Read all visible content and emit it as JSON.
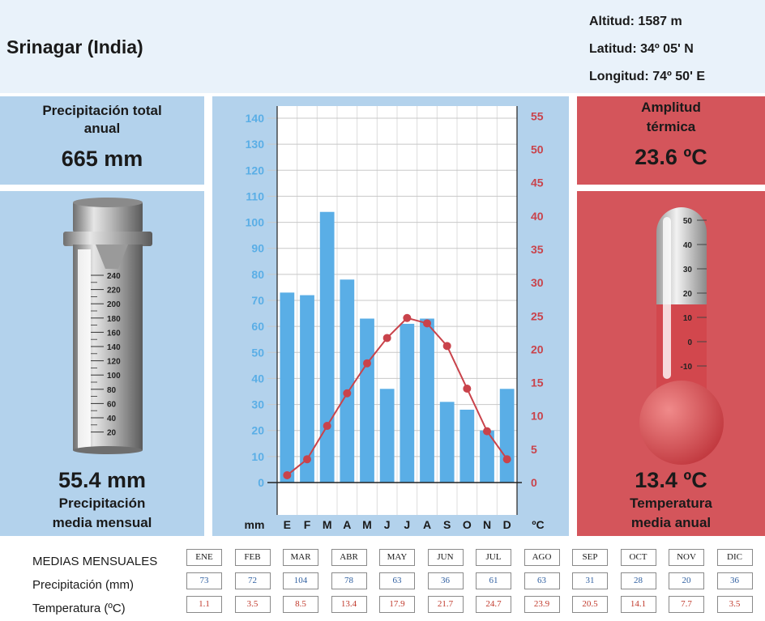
{
  "station": {
    "city": "Srinagar (India)",
    "altitude": "Altitud: 1587 m",
    "latitude": "Latitud: 34º 05' N",
    "longitude": "Longitud:  74º 50' E"
  },
  "precip_total": {
    "label_line1": "Precipitación total",
    "label_line2": "anual",
    "value": "665 mm"
  },
  "amplitude": {
    "label_line1": "Amplitud",
    "label_line2": "térmica",
    "value": "23.6 ºC"
  },
  "precip_monthly": {
    "value": "55.4 mm",
    "label_line1": "Precipitación",
    "label_line2": "media mensual"
  },
  "temp_annual": {
    "value": "13.4 ºC",
    "label_line1": "Temperatura",
    "label_line2": "media anual"
  },
  "gauge": {
    "ticks": [
      "240",
      "220",
      "200",
      "180",
      "160",
      "140",
      "120",
      "100",
      "80",
      "60",
      "40",
      "20"
    ]
  },
  "thermometer": {
    "ticks": [
      "50",
      "40",
      "30",
      "20",
      "10",
      "0",
      "-10"
    ]
  },
  "chart_data": {
    "type": "bar+line",
    "categories": [
      "E",
      "F",
      "M",
      "A",
      "M",
      "J",
      "J",
      "A",
      "S",
      "O",
      "N",
      "D"
    ],
    "series": [
      {
        "values": [
          73,
          72,
          104,
          78,
          63,
          36,
          61,
          63,
          31,
          28,
          20,
          36
        ],
        "color": "#5aaee6",
        "axis": "left"
      },
      {
        "values": [
          1.1,
          3.5,
          8.5,
          13.4,
          17.9,
          21.7,
          24.7,
          23.9,
          20.5,
          14.1,
          7.7,
          3.5
        ],
        "color": "#c9434b",
        "axis": "right"
      }
    ],
    "ylabel_left": "mm",
    "ylabel_right": "ºC",
    "ylim_left": [
      0,
      140
    ],
    "yticks_left": [
      0,
      10,
      20,
      30,
      40,
      50,
      60,
      70,
      80,
      90,
      100,
      110,
      120,
      130,
      140
    ],
    "ylim_right": [
      0,
      55
    ],
    "yticks_right": [
      0,
      5,
      10,
      15,
      20,
      25,
      30,
      35,
      40,
      45,
      50,
      55
    ],
    "grid": true
  },
  "table": {
    "title": "MEDIAS MENSUALES",
    "precip_label": "Precipitación (mm)",
    "temp_label": "Temperatura (ºC)",
    "months": [
      "ENE",
      "FEB",
      "MAR",
      "ABR",
      "MAY",
      "JUN",
      "JUL",
      "AGO",
      "SEP",
      "OCT",
      "NOV",
      "DIC"
    ],
    "precip": [
      "73",
      "72",
      "104",
      "78",
      "63",
      "36",
      "61",
      "63",
      "31",
      "28",
      "20",
      "36"
    ],
    "temp": [
      "1.1",
      "3.5",
      "8.5",
      "13.4",
      "17.9",
      "21.7",
      "24.7",
      "23.9",
      "20.5",
      "14.1",
      "7.7",
      "3.5"
    ]
  }
}
